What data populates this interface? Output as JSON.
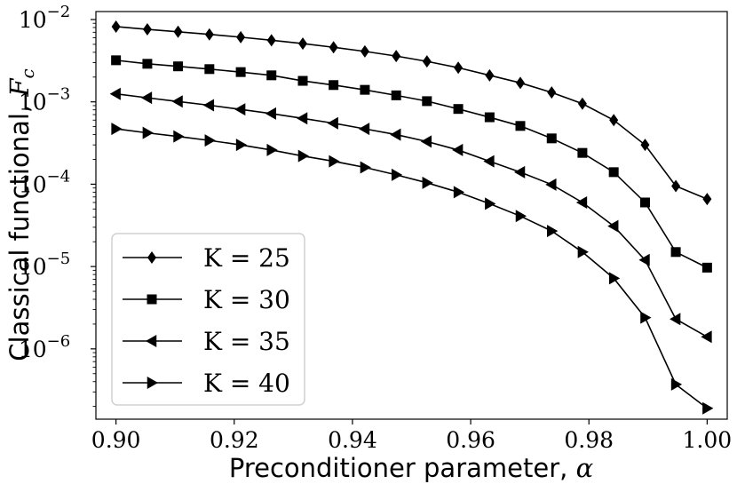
{
  "chart_data": {
    "type": "line",
    "x": [
      0.9,
      0.9053,
      0.9105,
      0.9158,
      0.9211,
      0.9263,
      0.9316,
      0.9368,
      0.9421,
      0.9474,
      0.9526,
      0.9579,
      0.9632,
      0.9684,
      0.9737,
      0.9789,
      0.9842,
      0.9895,
      0.9947,
      1.0
    ],
    "series": [
      {
        "name": "K = 25",
        "marker": "diamond",
        "values": [
          0.0082,
          0.0076,
          0.0071,
          0.0066,
          0.0061,
          0.0056,
          0.0051,
          0.0046,
          0.0041,
          0.0036,
          0.0031,
          0.0026,
          0.0021,
          0.0017,
          0.0013,
          0.00095,
          0.0006,
          0.0003,
          9.5e-05,
          6.6e-05
        ]
      },
      {
        "name": "K = 30",
        "marker": "square",
        "values": [
          0.0032,
          0.0029,
          0.0027,
          0.0025,
          0.0023,
          0.0021,
          0.0018,
          0.0016,
          0.0014,
          0.0012,
          0.00102,
          0.00082,
          0.00065,
          0.00051,
          0.00036,
          0.00024,
          0.00014,
          6e-05,
          1.5e-05,
          9.7e-06
        ]
      },
      {
        "name": "K = 35",
        "marker": "triangle-left",
        "values": [
          0.00125,
          0.00112,
          0.00101,
          0.00091,
          0.00081,
          0.00072,
          0.00063,
          0.00055,
          0.00047,
          0.0004,
          0.00033,
          0.00026,
          0.00019,
          0.00014,
          9.9e-05,
          6e-05,
          3.1e-05,
          1.2e-05,
          2.3e-06,
          1.4e-06
        ]
      },
      {
        "name": "K = 40",
        "marker": "triangle-right",
        "values": [
          0.00047,
          0.00042,
          0.00038,
          0.00034,
          0.0003,
          0.00026,
          0.00022,
          0.00019,
          0.00016,
          0.00013,
          0.000104,
          8e-05,
          5.8e-05,
          4.1e-05,
          2.7e-05,
          1.5e-05,
          7.2e-06,
          2.4e-06,
          3.7e-07,
          1.9e-07
        ]
      }
    ],
    "title": "",
    "xlabel": "Preconditioner parameter, α",
    "ylabel": "Classical functional, F_c",
    "xlim": [
      0.8966,
      1.0034
    ],
    "ylim": [
      1.4e-07,
      0.0125
    ],
    "yscale": "log",
    "xticks": [
      0.9,
      0.92,
      0.94,
      0.96,
      0.98,
      1.0
    ],
    "xtick_labels": [
      "0.90",
      "0.92",
      "0.94",
      "0.96",
      "0.98",
      "1.00"
    ],
    "yticks": [
      1e-06,
      1e-05,
      0.0001,
      0.001,
      0.01
    ],
    "ytick_exponents": [
      "−6",
      "−5",
      "−4",
      "−3",
      "−2"
    ],
    "grid": false,
    "legend": "bottom-left"
  }
}
